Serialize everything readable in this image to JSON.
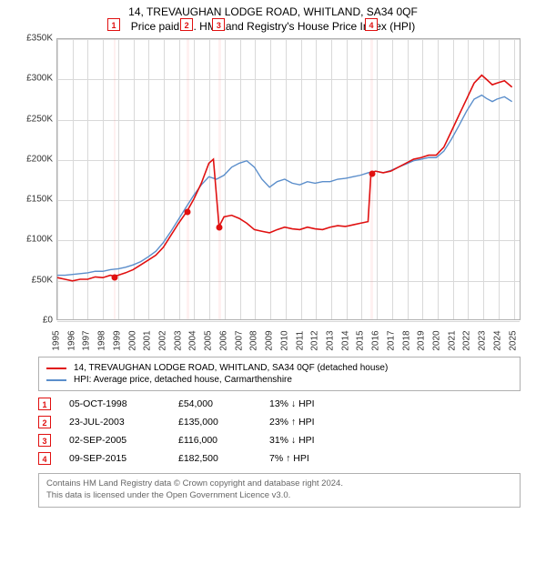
{
  "title_line1": "14, TREVAUGHAN LODGE ROAD, WHITLAND, SA34 0QF",
  "title_line2": "Price paid vs. HM Land Registry's House Price Index (HPI)",
  "chart": {
    "type": "line",
    "background_color": "#ffffff",
    "grid_color": "#d9d9d9",
    "border_color": "#b0b0b0",
    "x": {
      "min": 1995,
      "max": 2025.5,
      "ticks": [
        1995,
        1996,
        1997,
        1998,
        1999,
        2000,
        2001,
        2002,
        2003,
        2004,
        2005,
        2006,
        2007,
        2008,
        2009,
        2010,
        2011,
        2012,
        2013,
        2014,
        2015,
        2016,
        2017,
        2018,
        2019,
        2020,
        2021,
        2022,
        2023,
        2024,
        2025
      ]
    },
    "y": {
      "min": 0,
      "max": 350,
      "ticks": [
        0,
        50,
        100,
        150,
        200,
        250,
        300,
        350
      ],
      "labels": [
        "£0",
        "£50K",
        "£100K",
        "£150K",
        "£200K",
        "£250K",
        "£300K",
        "£350K"
      ]
    },
    "label_fontsize": 10,
    "vbands": [
      {
        "start": 1998.7,
        "end": 1998.85
      },
      {
        "start": 2003.5,
        "end": 2003.65
      },
      {
        "start": 2005.6,
        "end": 2005.75
      },
      {
        "start": 2015.6,
        "end": 2015.75
      }
    ],
    "series": [
      {
        "id": "property",
        "color": "#e01010",
        "width": 1.6,
        "points": [
          [
            1995,
            52
          ],
          [
            1995.5,
            50
          ],
          [
            1996,
            48
          ],
          [
            1996.5,
            50
          ],
          [
            1997,
            50
          ],
          [
            1997.5,
            53
          ],
          [
            1998,
            52
          ],
          [
            1998.5,
            55
          ],
          [
            1998.77,
            54
          ],
          [
            1999,
            55
          ],
          [
            1999.5,
            58
          ],
          [
            2000,
            62
          ],
          [
            2000.5,
            68
          ],
          [
            2001,
            74
          ],
          [
            2001.5,
            80
          ],
          [
            2002,
            90
          ],
          [
            2002.5,
            105
          ],
          [
            2003,
            120
          ],
          [
            2003.56,
            135
          ],
          [
            2003.56,
            135
          ],
          [
            2004,
            150
          ],
          [
            2004.5,
            170
          ],
          [
            2005,
            195
          ],
          [
            2005.3,
            200
          ],
          [
            2005.67,
            116
          ],
          [
            2005.67,
            116
          ],
          [
            2006,
            128
          ],
          [
            2006.5,
            130
          ],
          [
            2007,
            126
          ],
          [
            2007.5,
            120
          ],
          [
            2008,
            112
          ],
          [
            2008.5,
            110
          ],
          [
            2009,
            108
          ],
          [
            2009.5,
            112
          ],
          [
            2010,
            115
          ],
          [
            2010.5,
            113
          ],
          [
            2011,
            112
          ],
          [
            2011.5,
            115
          ],
          [
            2012,
            113
          ],
          [
            2012.5,
            112
          ],
          [
            2013,
            115
          ],
          [
            2013.5,
            117
          ],
          [
            2014,
            116
          ],
          [
            2014.5,
            118
          ],
          [
            2015,
            120
          ],
          [
            2015.5,
            122
          ],
          [
            2015.69,
            182.5
          ],
          [
            2015.69,
            182.5
          ],
          [
            2016,
            185
          ],
          [
            2016.5,
            183
          ],
          [
            2017,
            185
          ],
          [
            2017.5,
            190
          ],
          [
            2018,
            195
          ],
          [
            2018.5,
            200
          ],
          [
            2019,
            202
          ],
          [
            2019.5,
            205
          ],
          [
            2020,
            205
          ],
          [
            2020.5,
            215
          ],
          [
            2021,
            235
          ],
          [
            2021.5,
            255
          ],
          [
            2022,
            275
          ],
          [
            2022.5,
            295
          ],
          [
            2023,
            305
          ],
          [
            2023.3,
            300
          ],
          [
            2023.7,
            293
          ],
          [
            2024,
            295
          ],
          [
            2024.5,
            298
          ],
          [
            2025,
            290
          ]
        ]
      },
      {
        "id": "hpi",
        "color": "#5b8ecb",
        "width": 1.4,
        "points": [
          [
            1995,
            55
          ],
          [
            1995.5,
            55
          ],
          [
            1996,
            56
          ],
          [
            1996.5,
            57
          ],
          [
            1997,
            58
          ],
          [
            1997.5,
            60
          ],
          [
            1998,
            60
          ],
          [
            1998.5,
            62
          ],
          [
            1999,
            63
          ],
          [
            1999.5,
            65
          ],
          [
            2000,
            68
          ],
          [
            2000.5,
            72
          ],
          [
            2001,
            78
          ],
          [
            2001.5,
            85
          ],
          [
            2002,
            96
          ],
          [
            2002.5,
            110
          ],
          [
            2003,
            125
          ],
          [
            2003.5,
            140
          ],
          [
            2004,
            155
          ],
          [
            2004.5,
            168
          ],
          [
            2005,
            178
          ],
          [
            2005.5,
            175
          ],
          [
            2006,
            180
          ],
          [
            2006.5,
            190
          ],
          [
            2007,
            195
          ],
          [
            2007.5,
            198
          ],
          [
            2008,
            190
          ],
          [
            2008.5,
            175
          ],
          [
            2009,
            165
          ],
          [
            2009.5,
            172
          ],
          [
            2010,
            175
          ],
          [
            2010.5,
            170
          ],
          [
            2011,
            168
          ],
          [
            2011.5,
            172
          ],
          [
            2012,
            170
          ],
          [
            2012.5,
            172
          ],
          [
            2013,
            172
          ],
          [
            2013.5,
            175
          ],
          [
            2014,
            176
          ],
          [
            2014.5,
            178
          ],
          [
            2015,
            180
          ],
          [
            2015.5,
            183
          ],
          [
            2016,
            185
          ],
          [
            2016.5,
            183
          ],
          [
            2017,
            186
          ],
          [
            2017.5,
            190
          ],
          [
            2018,
            194
          ],
          [
            2018.5,
            198
          ],
          [
            2019,
            200
          ],
          [
            2019.5,
            202
          ],
          [
            2020,
            202
          ],
          [
            2020.5,
            210
          ],
          [
            2021,
            225
          ],
          [
            2021.5,
            242
          ],
          [
            2022,
            260
          ],
          [
            2022.5,
            275
          ],
          [
            2023,
            280
          ],
          [
            2023.3,
            276
          ],
          [
            2023.7,
            272
          ],
          [
            2024,
            275
          ],
          [
            2024.5,
            278
          ],
          [
            2025,
            272
          ]
        ]
      }
    ],
    "markers": [
      {
        "n": "1",
        "x": 1998.77,
        "y": 54
      },
      {
        "n": "2",
        "x": 2003.56,
        "y": 135
      },
      {
        "n": "3",
        "x": 2005.67,
        "y": 116
      },
      {
        "n": "4",
        "x": 2015.69,
        "y": 182.5
      }
    ]
  },
  "legend": {
    "items": [
      {
        "color": "#e01010",
        "label": "14, TREVAUGHAN LODGE ROAD, WHITLAND, SA34 0QF (detached house)"
      },
      {
        "color": "#5b8ecb",
        "label": "HPI: Average price, detached house, Carmarthenshire"
      }
    ]
  },
  "events": [
    {
      "n": "1",
      "date": "05-OCT-1998",
      "price": "£54,000",
      "delta": "13% ↓ HPI"
    },
    {
      "n": "2",
      "date": "23-JUL-2003",
      "price": "£135,000",
      "delta": "23% ↑ HPI"
    },
    {
      "n": "3",
      "date": "02-SEP-2005",
      "price": "£116,000",
      "delta": "31% ↓ HPI"
    },
    {
      "n": "4",
      "date": "09-SEP-2015",
      "price": "£182,500",
      "delta": "7% ↑ HPI"
    }
  ],
  "footer_line1": "Contains HM Land Registry data © Crown copyright and database right 2024.",
  "footer_line2": "This data is licensed under the Open Government Licence v3.0."
}
